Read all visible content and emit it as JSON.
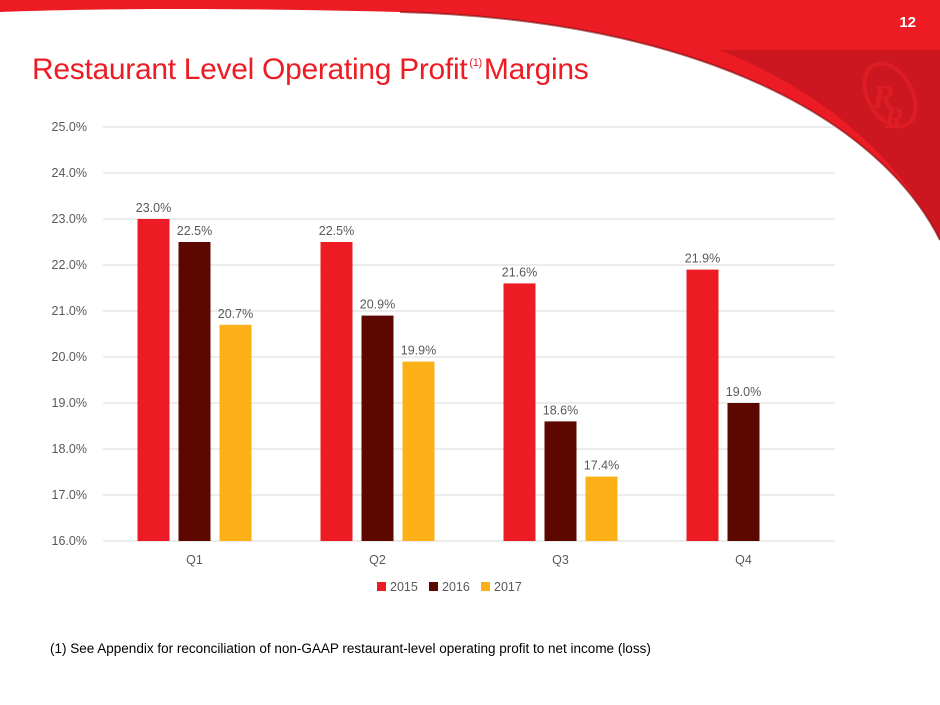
{
  "page_number": "12",
  "title": {
    "main": "Restaurant Level Operating Profit",
    "superscript": "(1)",
    "suffix": "Margins"
  },
  "footnote": "(1) See Appendix for reconciliation of non-GAAP restaurant-level operating profit to net income (loss)",
  "logo": {
    "text": "RR",
    "icon": "red-robin-logo-icon"
  },
  "colors": {
    "brand_red": "#ed1c24",
    "s2015": "#ed1c24",
    "s2016": "#5c0700",
    "s2017": "#fbb017"
  },
  "chart_data": {
    "type": "bar",
    "title": "Restaurant Level Operating Profit Margins",
    "categories": [
      "Q1",
      "Q2",
      "Q3",
      "Q4"
    ],
    "series": [
      {
        "name": "2015",
        "values": [
          23.0,
          22.5,
          21.6,
          21.9
        ],
        "labels": [
          "23.0%",
          "22.5%",
          "21.6%",
          "21.9%"
        ]
      },
      {
        "name": "2016",
        "values": [
          22.5,
          20.9,
          18.6,
          19.0
        ],
        "labels": [
          "22.5%",
          "20.9%",
          "18.6%",
          "19.0%"
        ]
      },
      {
        "name": "2017",
        "values": [
          20.7,
          19.9,
          17.4,
          null
        ],
        "labels": [
          "20.7%",
          "19.9%",
          "17.4%",
          null
        ]
      }
    ],
    "ylim": [
      16,
      25
    ],
    "yticks": [
      16,
      17,
      18,
      19,
      20,
      21,
      22,
      23,
      24,
      25
    ],
    "ytick_labels": [
      "16.0%",
      "17.0%",
      "18.0%",
      "19.0%",
      "20.0%",
      "21.0%",
      "22.0%",
      "23.0%",
      "24.0%",
      "25.0%"
    ],
    "xlabel": "",
    "ylabel": "",
    "grid": true,
    "legend": "bottom"
  }
}
